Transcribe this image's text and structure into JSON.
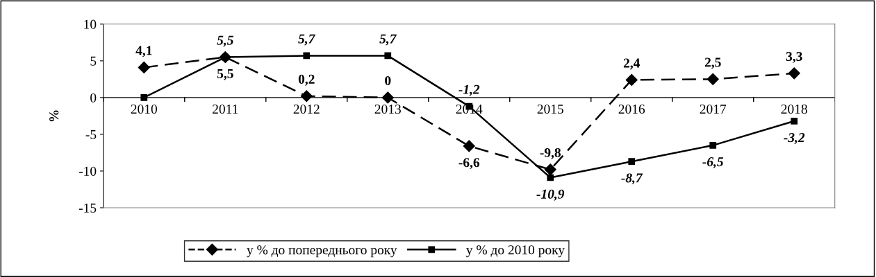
{
  "chart_data": {
    "type": "line",
    "ylabel": "%",
    "categories": [
      "2010",
      "2011",
      "2012",
      "2013",
      "2014",
      "2015",
      "2016",
      "2017",
      "2018"
    ],
    "series": [
      {
        "name": "у % до попереднього року",
        "color": "#000000",
        "marker": "diamond",
        "line_style": "dashed",
        "values": [
          4.1,
          5.5,
          0.2,
          0,
          -6.6,
          -9.8,
          2.4,
          2.5,
          3.3
        ],
        "value_labels": [
          "4,1",
          "5,5",
          "0,2",
          "0",
          "-6,6",
          "-9,8",
          "2,4",
          "2,5",
          "3,3"
        ]
      },
      {
        "name": "у % до 2010 року",
        "color": "#000000",
        "marker": "square",
        "line_style": "solid",
        "values": [
          0,
          5.5,
          5.7,
          5.7,
          -1.2,
          -10.9,
          -8.7,
          -6.5,
          -3.2
        ],
        "value_labels": [
          null,
          "5,5",
          "5,7",
          "5,7",
          "-1,2",
          "-10,9",
          "-8,7",
          "-6,5",
          "-3,2"
        ]
      }
    ],
    "ylim": [
      -15,
      10
    ],
    "yticks": [
      -15,
      -10,
      -5,
      0,
      5,
      10
    ],
    "grid": false,
    "legend": "bottom"
  }
}
